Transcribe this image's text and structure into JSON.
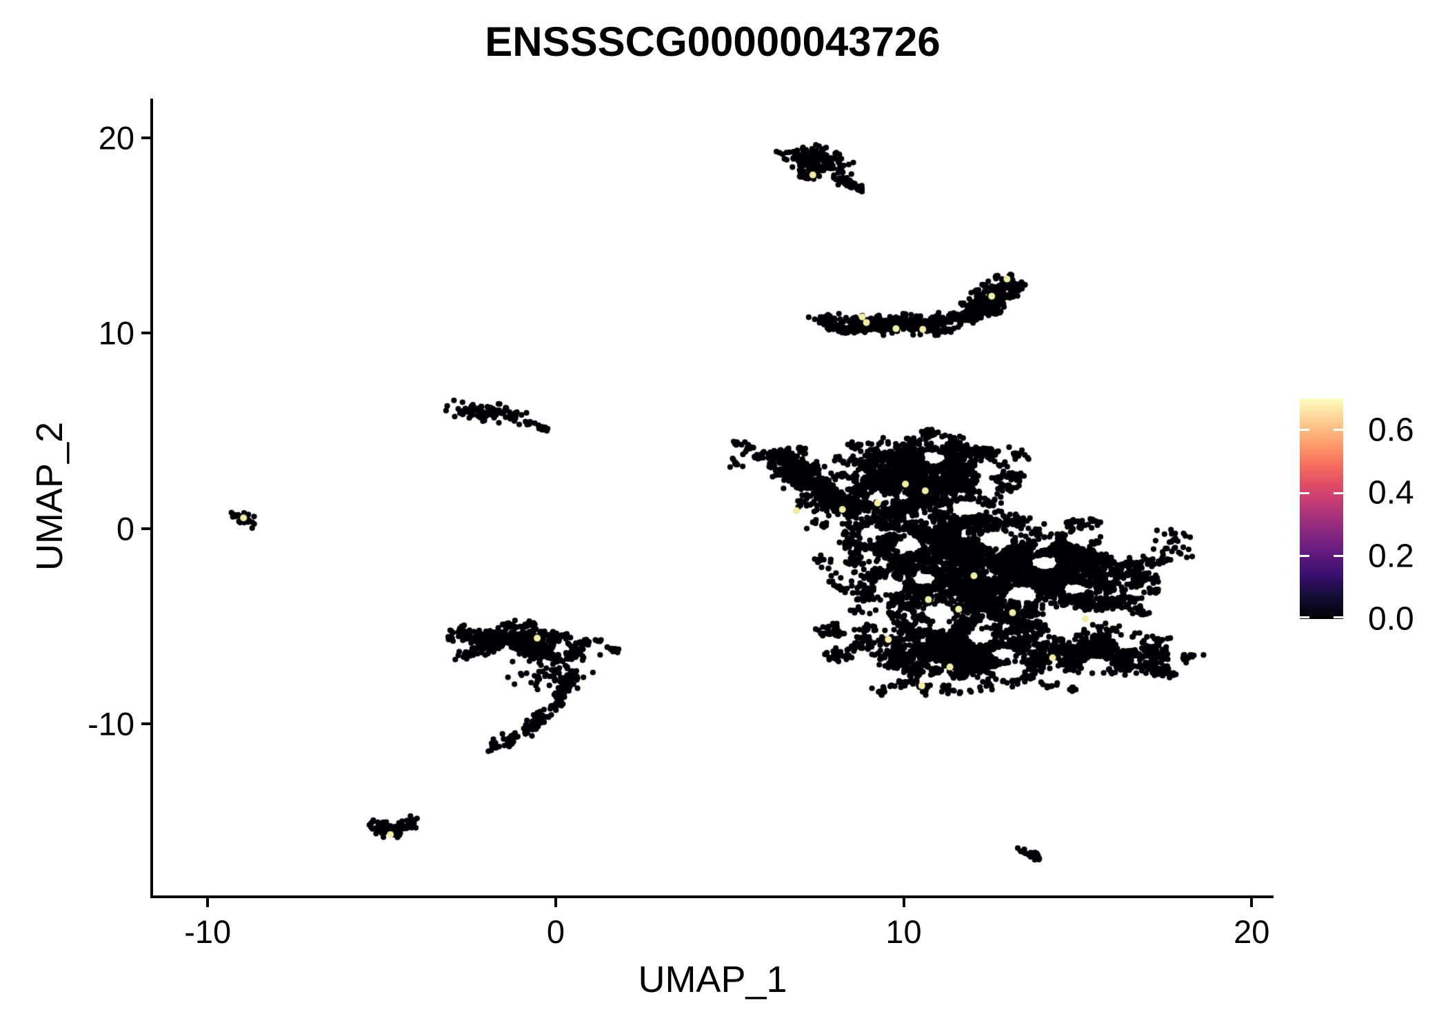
{
  "title": "ENSSSCG00000043726",
  "axes": {
    "x": {
      "label": "UMAP_1",
      "ticks": [
        -10,
        0,
        10,
        20
      ]
    },
    "y": {
      "label": "UMAP_2",
      "ticks": [
        -10,
        0,
        10,
        20
      ]
    }
  },
  "colorbar": {
    "tick_labels": [
      "0.0",
      "0.2",
      "0.4",
      "0.6"
    ],
    "tick_values": [
      0.0,
      0.2,
      0.4,
      0.6
    ],
    "limits": [
      0.0,
      0.7
    ],
    "palette_name": "magma",
    "gradient_stops": [
      "#000004",
      "#140e36",
      "#3b0f70",
      "#641a80",
      "#8c2981",
      "#b73779",
      "#de4968",
      "#f66e5c",
      "#fe9f6d",
      "#fece91",
      "#fcfdbf"
    ]
  },
  "chart_data": {
    "type": "scatter",
    "title": "ENSSSCG00000043726",
    "xlabel": "UMAP_1",
    "ylabel": "UMAP_2",
    "xlim": [
      -11.57,
      20.59
    ],
    "ylim": [
      -18.86,
      22.02
    ],
    "grid": false,
    "point_color": "#000006",
    "highlight_color": "#f2eda5",
    "clusters": [
      {
        "name": "comet-head",
        "kind": "blob",
        "cx": 7.5,
        "cy": 18.9,
        "sx": 0.52,
        "sy": 0.3,
        "rot": -35,
        "n": 170
      },
      {
        "name": "comet-sub",
        "kind": "blob",
        "cx": 7.2,
        "cy": 18.15,
        "sx": 0.16,
        "sy": 0.16,
        "rot": 0,
        "n": 22
      },
      {
        "name": "comet-tail",
        "kind": "path",
        "pts": [
          [
            8.0,
            18.05
          ],
          [
            8.35,
            17.75
          ],
          [
            8.6,
            17.5
          ],
          [
            8.78,
            17.32
          ]
        ],
        "jitter": 0.07,
        "n": 38
      },
      {
        "name": "banana-band",
        "kind": "path",
        "pts": [
          [
            7.82,
            10.55
          ],
          [
            8.4,
            10.45
          ],
          [
            9.3,
            10.4
          ],
          [
            10.3,
            10.42
          ],
          [
            11.2,
            10.55
          ]
        ],
        "jitter": 0.2,
        "n": 480,
        "clump": true
      },
      {
        "name": "banana-arm",
        "kind": "path",
        "pts": [
          [
            11.2,
            10.55
          ],
          [
            11.85,
            10.85
          ],
          [
            12.3,
            11.35
          ],
          [
            12.7,
            11.95
          ],
          [
            12.98,
            12.72
          ]
        ],
        "jitter": 0.24,
        "n": 330,
        "clump": true
      },
      {
        "name": "dot-left",
        "kind": "blob",
        "cx": -8.98,
        "cy": 0.5,
        "sx": 0.2,
        "sy": 0.14,
        "rot": -25,
        "n": 24
      },
      {
        "name": "mid-small",
        "kind": "blob",
        "cx": -2.0,
        "cy": 5.95,
        "sx": 0.48,
        "sy": 0.2,
        "rot": -8,
        "n": 110
      },
      {
        "name": "mid-dot",
        "kind": "blob",
        "cx": -0.78,
        "cy": 5.42,
        "sx": 0.05,
        "sy": 0.05,
        "rot": 0,
        "n": 4
      },
      {
        "name": "mid-dash",
        "kind": "path",
        "pts": [
          [
            -0.58,
            5.3
          ],
          [
            -0.2,
            5.0
          ]
        ],
        "jitter": 0.06,
        "n": 14
      },
      {
        "name": "wing-band",
        "kind": "blob",
        "cx": -0.8,
        "cy": -5.95,
        "sx": 1.0,
        "sy": 0.42,
        "rot": -6,
        "n": 560,
        "clump": true,
        "avoidHoles": true
      },
      {
        "name": "wing-scatter",
        "kind": "blob",
        "cx": -0.15,
        "cy": -7.5,
        "sx": 0.55,
        "sy": 0.5,
        "rot": 0,
        "n": 55
      },
      {
        "name": "wing-hook",
        "kind": "path",
        "pts": [
          [
            0.5,
            -7.3
          ],
          [
            0.18,
            -8.5
          ],
          [
            -0.25,
            -9.5
          ],
          [
            -0.9,
            -10.45
          ],
          [
            -1.55,
            -11.05
          ],
          [
            -1.92,
            -11.3
          ]
        ],
        "jitter": 0.13,
        "n": 135
      },
      {
        "name": "v-small",
        "kind": "path",
        "pts": [
          [
            -5.35,
            -15.05
          ],
          [
            -4.95,
            -15.4
          ],
          [
            -4.72,
            -15.6
          ],
          [
            -4.45,
            -15.35
          ],
          [
            -4.05,
            -14.95
          ]
        ],
        "jitter": 0.13,
        "n": 75
      },
      {
        "name": "main-arm",
        "kind": "blob",
        "cx": 7.85,
        "cy": 1.95,
        "sx": 1.5,
        "sy": 0.42,
        "rot": -43,
        "n": 760,
        "clump": true,
        "avoidHoles": true
      },
      {
        "name": "main-top",
        "kind": "blob",
        "cx": 10.6,
        "cy": 2.9,
        "sx": 1.15,
        "sy": 0.85,
        "rot": 0,
        "n": 1450,
        "clump": true,
        "avoidHoles": true
      },
      {
        "name": "main-core",
        "kind": "blob",
        "cx": 11.2,
        "cy": -1.6,
        "sx": 1.5,
        "sy": 1.55,
        "rot": 0,
        "n": 2600,
        "clump": true,
        "avoidHoles": true
      },
      {
        "name": "main-right",
        "kind": "blob",
        "cx": 14.4,
        "cy": -2.4,
        "sx": 1.35,
        "sy": 1.15,
        "rot": 0,
        "n": 1750,
        "clump": true,
        "avoidHoles": true
      },
      {
        "name": "main-bottom",
        "kind": "blob",
        "cx": 11.6,
        "cy": -6.2,
        "sx": 1.5,
        "sy": 0.85,
        "rot": 0,
        "n": 1450,
        "clump": true,
        "avoidHoles": true
      },
      {
        "name": "main-bottom-right",
        "kind": "blob",
        "cx": 15.8,
        "cy": -6.3,
        "sx": 1.15,
        "sy": 0.5,
        "rot": -18,
        "n": 620,
        "clump": true,
        "avoidHoles": true
      },
      {
        "name": "right-small",
        "kind": "blob",
        "cx": 17.8,
        "cy": -0.85,
        "sx": 0.26,
        "sy": 0.38,
        "rot": 0,
        "n": 30
      },
      {
        "name": "bottom-right-dash",
        "kind": "path",
        "pts": [
          [
            13.35,
            -16.4
          ],
          [
            13.62,
            -16.6
          ],
          [
            13.9,
            -16.95
          ]
        ],
        "jitter": 0.08,
        "n": 24
      }
    ],
    "holes": [
      [
        11.8,
        1.05,
        0.45
      ],
      [
        12.65,
        -0.55,
        0.5
      ],
      [
        10.15,
        -0.85,
        0.4
      ],
      [
        13.4,
        -3.35,
        0.45
      ],
      [
        11.0,
        -4.3,
        0.45
      ],
      [
        12.2,
        -5.55,
        0.4
      ],
      [
        14.6,
        -5.25,
        0.4
      ],
      [
        9.6,
        -2.95,
        0.45
      ],
      [
        13.0,
        -7.35,
        0.45
      ],
      [
        15.55,
        -6.95,
        0.4
      ],
      [
        10.6,
        -2.55,
        0.35
      ],
      [
        14.05,
        -1.75,
        0.4
      ],
      [
        16.2,
        -4.5,
        0.4
      ],
      [
        9.05,
        -0.2,
        0.35
      ],
      [
        15.0,
        -0.55,
        0.35
      ],
      [
        12.4,
        2.2,
        0.35
      ],
      [
        13.6,
        1.0,
        0.4
      ],
      [
        8.3,
        2.3,
        0.3
      ],
      [
        10.9,
        3.6,
        0.35
      ],
      [
        14.9,
        -3.1,
        0.35
      ],
      [
        16.5,
        -5.9,
        0.35
      ],
      [
        11.7,
        -8.0,
        0.35
      ],
      [
        9.3,
        -4.6,
        0.35
      ],
      [
        12.9,
        -6.4,
        0.35
      ],
      [
        14.2,
        -7.6,
        0.35
      ],
      [
        -1.35,
        -6.35,
        0.22
      ],
      [
        0.15,
        -6.15,
        0.25
      ]
    ],
    "highlights": [
      [
        7.39,
        18.11
      ],
      [
        12.97,
        12.78
      ],
      [
        12.53,
        11.9
      ],
      [
        8.81,
        10.84
      ],
      [
        8.93,
        10.55
      ],
      [
        9.78,
        10.24
      ],
      [
        10.55,
        10.2
      ],
      [
        -8.97,
        0.55
      ],
      [
        -0.53,
        -5.61
      ],
      [
        -4.75,
        -15.67
      ],
      [
        10.05,
        2.28
      ],
      [
        10.62,
        1.93
      ],
      [
        9.25,
        1.31
      ],
      [
        8.24,
        0.98
      ],
      [
        6.92,
        0.92
      ],
      [
        12.02,
        -2.42
      ],
      [
        10.71,
        -3.64
      ],
      [
        11.58,
        -4.13
      ],
      [
        13.13,
        -4.31
      ],
      [
        15.22,
        -4.62
      ],
      [
        9.56,
        -5.68
      ],
      [
        14.28,
        -6.62
      ],
      [
        11.33,
        -7.09
      ],
      [
        10.52,
        -8.05
      ]
    ]
  }
}
